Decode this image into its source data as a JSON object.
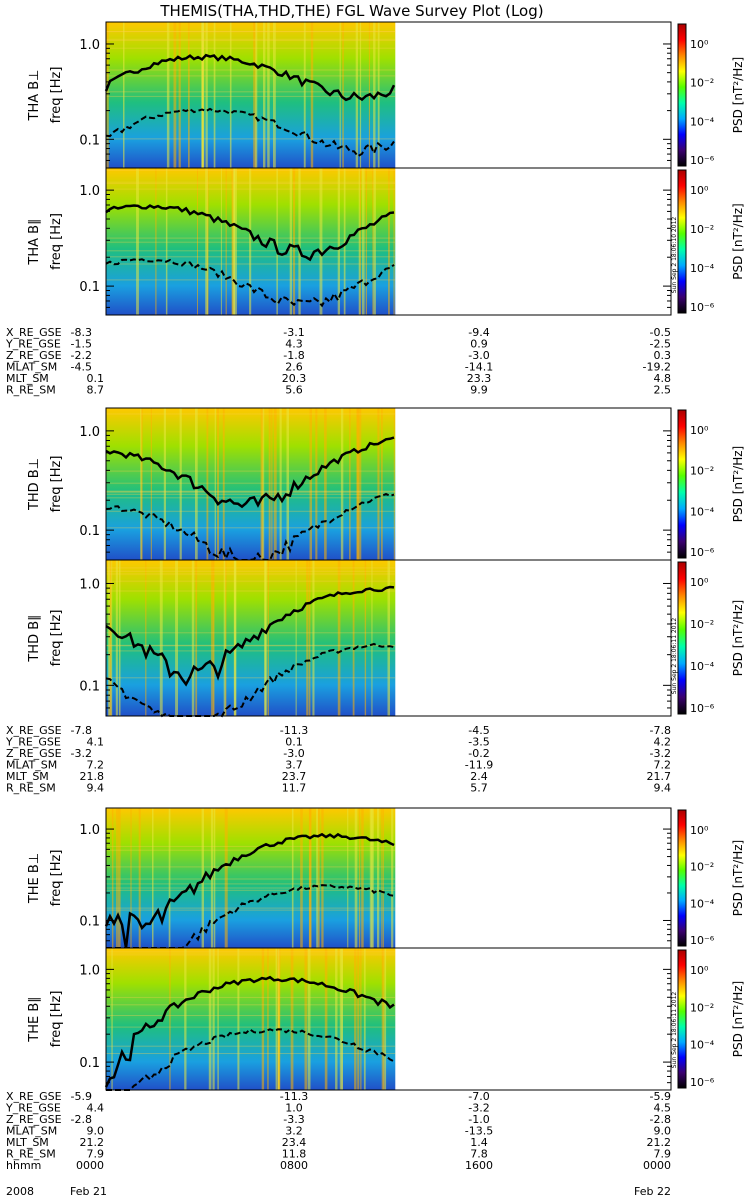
{
  "title": "THEMIS(THA,THD,THE) FGL Wave Survey Plot (Log)",
  "chart_data": {
    "type": "heatmap",
    "title": "THEMIS(THA,THD,THE) FGL Wave Survey Plot (Log)",
    "y_axis": {
      "label_suffix": "freq [Hz]",
      "scale": "log",
      "ticks": [
        "1.0",
        "0.1"
      ],
      "tick_values": [
        1.0,
        0.1
      ]
    },
    "colorbar": {
      "label": "PSD [nT²/Hz]",
      "scale": "log",
      "ticks": [
        "10⁰",
        "10⁻²",
        "10⁻⁴",
        "10⁻⁶"
      ],
      "colormap": [
        "#000000",
        "#3a0070",
        "#0000ff",
        "#00aaff",
        "#00ffaa",
        "#55ff00",
        "#ffff00",
        "#ff8800",
        "#ff0000",
        "#aa0000"
      ]
    },
    "panels": [
      {
        "id": "tha-bperp",
        "label": "THA B⊥",
        "probe": "THA"
      },
      {
        "id": "tha-bpar",
        "label": "THA B∥",
        "probe": "THA",
        "stamp": "Sun Sep 2 18:06:10 2012"
      },
      {
        "id": "thd-bperp",
        "label": "THD B⊥",
        "probe": "THD"
      },
      {
        "id": "thd-bpar",
        "label": "THD B∥",
        "probe": "THD",
        "stamp": "Sun Sep 2 18:06:11 2012"
      },
      {
        "id": "the-bperp",
        "label": "THE B⊥",
        "probe": "THE"
      },
      {
        "id": "the-bpar",
        "label": "THE B∥",
        "probe": "THE",
        "stamp": "Sun Sep 2 18:06:11 2012"
      }
    ],
    "ephemeris": [
      {
        "probe": "THA",
        "rows": [
          {
            "name": "X_RE_GSE",
            "values": [
              "-8.3",
              "-3.1",
              "-9.4",
              "-0.5"
            ]
          },
          {
            "name": "Y_RE_GSE",
            "values": [
              "-1.5",
              "4.3",
              "0.9",
              "-2.5"
            ]
          },
          {
            "name": "Z_RE_GSE",
            "values": [
              "-2.2",
              "-1.8",
              "-3.0",
              "0.3"
            ]
          },
          {
            "name": "MLAT_SM",
            "values": [
              "-4.5",
              "2.6",
              "-14.1",
              "-19.2"
            ]
          },
          {
            "name": "MLT_SM",
            "values": [
              "0.1",
              "20.3",
              "23.3",
              "4.8"
            ]
          },
          {
            "name": "R_RE_SM",
            "values": [
              "8.7",
              "5.6",
              "9.9",
              "2.5"
            ]
          }
        ]
      },
      {
        "probe": "THD",
        "rows": [
          {
            "name": "X_RE_GSE",
            "values": [
              "-7.8",
              "-11.3",
              "-4.5",
              "-7.8"
            ]
          },
          {
            "name": "Y_RE_GSE",
            "values": [
              "4.1",
              "0.1",
              "-3.5",
              "4.2"
            ]
          },
          {
            "name": "Z_RE_GSE",
            "values": [
              "-3.2",
              "-3.0",
              "-0.2",
              "-3.2"
            ]
          },
          {
            "name": "MLAT_SM",
            "values": [
              "7.2",
              "3.7",
              "-11.9",
              "7.2"
            ]
          },
          {
            "name": "MLT_SM",
            "values": [
              "21.8",
              "23.7",
              "2.4",
              "21.7"
            ]
          },
          {
            "name": "R_RE_SM",
            "values": [
              "9.4",
              "11.7",
              "5.7",
              "9.4"
            ]
          }
        ]
      },
      {
        "probe": "THE",
        "rows": [
          {
            "name": "X_RE_GSE",
            "values": [
              "-5.9",
              "-11.3",
              "-7.0",
              "-5.9"
            ]
          },
          {
            "name": "Y_RE_GSE",
            "values": [
              "4.4",
              "1.0",
              "-3.2",
              "4.5"
            ]
          },
          {
            "name": "Z_RE_GSE",
            "values": [
              "-2.8",
              "-3.3",
              "-1.0",
              "-2.8"
            ]
          },
          {
            "name": "MLAT_SM",
            "values": [
              "9.0",
              "3.2",
              "-13.5",
              "9.0"
            ]
          },
          {
            "name": "MLT_SM",
            "values": [
              "21.2",
              "23.4",
              "1.4",
              "21.2"
            ]
          },
          {
            "name": "R_RE_SM",
            "values": [
              "7.9",
              "11.8",
              "7.8",
              "7.9"
            ]
          },
          {
            "name": "hhmm",
            "values": [
              "0000",
              "0800",
              "1600",
              "0000"
            ]
          }
        ]
      }
    ],
    "time_axis": {
      "year": "2008",
      "start_date": "Feb 21",
      "end_date": "Feb 22"
    },
    "data_coverage_end_fraction": 0.512
  }
}
